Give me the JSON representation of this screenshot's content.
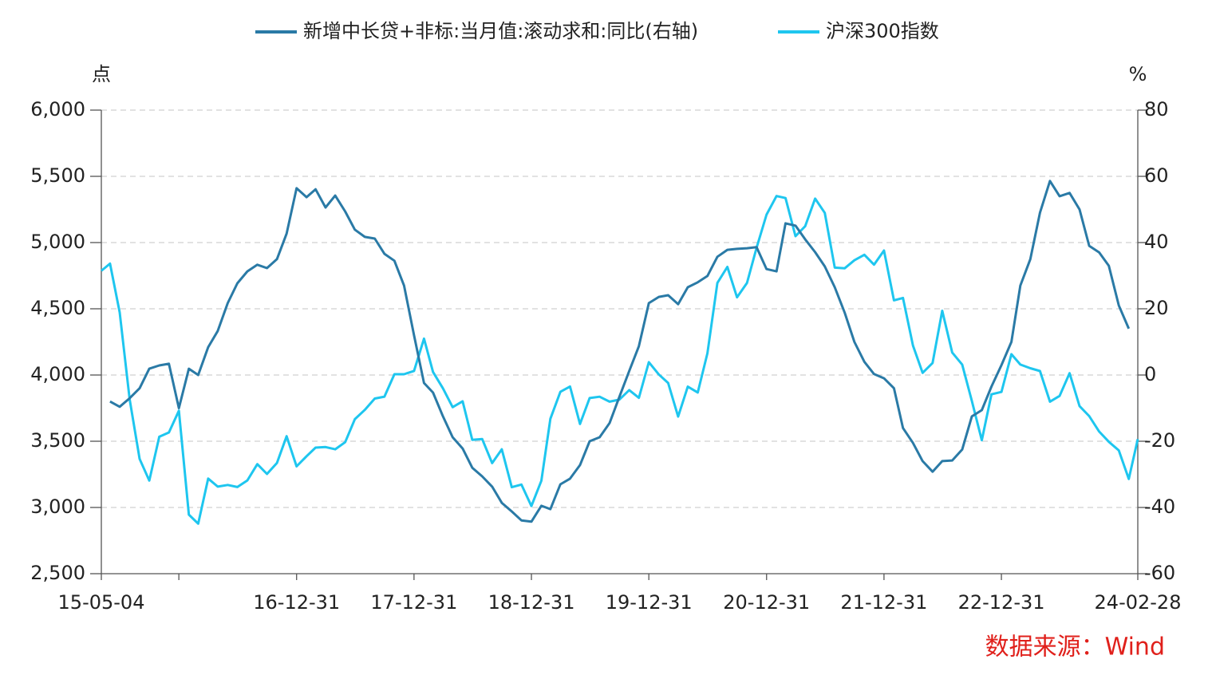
{
  "chart_data": {
    "type": "line",
    "y_unit": "点",
    "y2_unit": "%",
    "source": "数据来源：Wind",
    "x": [
      "15-05-04",
      "15-05-31",
      "15-06-30",
      "15-07-31",
      "15-08-31",
      "15-09-30",
      "15-10-31",
      "15-11-30",
      "15-12-31",
      "16-01-31",
      "16-02-29",
      "16-03-31",
      "16-04-30",
      "16-05-31",
      "16-06-30",
      "16-07-31",
      "16-08-31",
      "16-09-30",
      "16-10-31",
      "16-11-30",
      "16-12-31",
      "17-01-31",
      "17-02-28",
      "17-03-31",
      "17-04-30",
      "17-05-31",
      "17-06-30",
      "17-07-31",
      "17-08-31",
      "17-09-30",
      "17-10-31",
      "17-11-30",
      "17-12-31",
      "18-01-31",
      "18-02-28",
      "18-03-31",
      "18-04-30",
      "18-05-31",
      "18-06-30",
      "18-07-31",
      "18-08-31",
      "18-09-30",
      "18-10-31",
      "18-11-30",
      "18-12-31",
      "19-01-31",
      "19-02-28",
      "19-03-31",
      "19-04-30",
      "19-05-31",
      "19-06-30",
      "19-07-31",
      "19-08-31",
      "19-09-30",
      "19-10-31",
      "19-11-30",
      "19-12-31",
      "20-01-31",
      "20-02-29",
      "20-03-31",
      "20-04-30",
      "20-05-31",
      "20-06-30",
      "20-07-31",
      "20-08-31",
      "20-09-30",
      "20-10-31",
      "20-11-30",
      "20-12-31",
      "21-01-31",
      "21-02-28",
      "21-03-31",
      "21-04-30",
      "21-05-31",
      "21-06-30",
      "21-07-31",
      "21-08-31",
      "21-09-30",
      "21-10-31",
      "21-11-30",
      "21-12-31",
      "22-01-31",
      "22-02-28",
      "22-03-31",
      "22-04-30",
      "22-05-31",
      "22-06-30",
      "22-07-31",
      "22-08-31",
      "22-09-30",
      "22-10-31",
      "22-11-30",
      "22-12-31",
      "23-01-31",
      "23-02-28",
      "23-03-31",
      "23-04-30",
      "23-05-31",
      "23-06-30",
      "23-07-31",
      "23-08-31",
      "23-09-30",
      "23-10-31",
      "23-11-30",
      "23-12-31",
      "24-01-31",
      "24-02-28"
    ],
    "series": [
      {
        "name": "新增中长贷+非标:当月值:滚动求和:同比(右轴)",
        "color": "#2a7aa6",
        "axis": "y2",
        "values": [
          null,
          -8,
          -9.6,
          -7,
          -4,
          1.9,
          2.9,
          3.4,
          -10,
          1.9,
          0,
          8.4,
          13.3,
          21.7,
          27.7,
          31.3,
          33.3,
          32.3,
          35,
          42.7,
          56.4,
          53.7,
          56.1,
          50.6,
          54.2,
          49.4,
          43.9,
          41.7,
          41.2,
          36.6,
          34.5,
          27,
          12,
          -2.4,
          -5.3,
          -12.5,
          -18.8,
          -22.2,
          -28,
          -30.6,
          -33.7,
          -38.6,
          -41.2,
          -43.9,
          -44.3,
          -39.5,
          -40.5,
          -33,
          -31.3,
          -27.2,
          -20,
          -18.8,
          -14.5,
          -6.7,
          1.2,
          8.7,
          21.7,
          23.6,
          24.1,
          21.4,
          26.5,
          28,
          29.9,
          35.7,
          37.8,
          38.1,
          38.3,
          38.6,
          32,
          31.3,
          45.8,
          45.1,
          41,
          37.1,
          32.8,
          26.5,
          18.8,
          10,
          4,
          0.3,
          -1,
          -4,
          -16,
          -20.5,
          -26,
          -29.2,
          -26,
          -25.8,
          -22.5,
          -12.5,
          -10.6,
          -3.5,
          3,
          10,
          27,
          35,
          49,
          58.6,
          54,
          55,
          50,
          39,
          37,
          33,
          21,
          14,
          null
        ]
      },
      {
        "name": "沪深300指数",
        "color": "#1ec6ef",
        "axis": "y",
        "values": [
          4787,
          4841,
          4473,
          3816,
          3366,
          3203,
          3534,
          3566,
          3731,
          2946,
          2878,
          3218,
          3157,
          3170,
          3154,
          3204,
          3327,
          3253,
          3336,
          3538,
          3310,
          3387,
          3452,
          3456,
          3439,
          3493,
          3666,
          3737,
          3822,
          3837,
          4006,
          4006,
          4031,
          4275,
          4023,
          3899,
          3757,
          3802,
          3510,
          3517,
          3335,
          3439,
          3153,
          3173,
          3011,
          3202,
          3670,
          3873,
          3913,
          3630,
          3826,
          3836,
          3799,
          3814,
          3886,
          3828,
          4097,
          4004,
          3940,
          3686,
          3912,
          3868,
          4164,
          4695,
          4816,
          4587,
          4695,
          4960,
          5211,
          5351,
          5336,
          5048,
          5123,
          5332,
          5224,
          4811,
          4806,
          4866,
          4908,
          4833,
          4940,
          4564,
          4582,
          4223,
          4016,
          4091,
          4485,
          4170,
          4079,
          3805,
          3508,
          3854,
          3872,
          4157,
          4079,
          4051,
          4030,
          3799,
          3842,
          4014,
          3765,
          3690,
          3573,
          3496,
          3431,
          3215,
          3516
        ]
      }
    ],
    "xlim": [
      "15-05-04",
      "24-02-28"
    ],
    "xticks": [
      "15-05-04",
      {
        "value": "15-12-31",
        "label": null
      },
      "16-12-31",
      "17-12-31",
      "18-12-31",
      "19-12-31",
      "20-12-31",
      "21-12-31",
      "22-12-31",
      "24-02-28"
    ],
    "ylim": [
      2500,
      6000
    ],
    "yticks": [
      {
        "value": 2500,
        "label": "2,500"
      },
      {
        "value": 3000,
        "label": "3,000"
      },
      {
        "value": 3500,
        "label": "3,500"
      },
      {
        "value": 4000,
        "label": "4,000"
      },
      {
        "value": 4500,
        "label": "4,500"
      },
      {
        "value": 5000,
        "label": "5,000"
      },
      {
        "value": 5500,
        "label": "5,500"
      },
      {
        "value": 6000,
        "label": "6,000"
      }
    ],
    "y2lim": [
      -60,
      80
    ],
    "y2ticks": [
      -60,
      -40,
      -20,
      0,
      20,
      40,
      60,
      80
    ],
    "grid": true
  }
}
